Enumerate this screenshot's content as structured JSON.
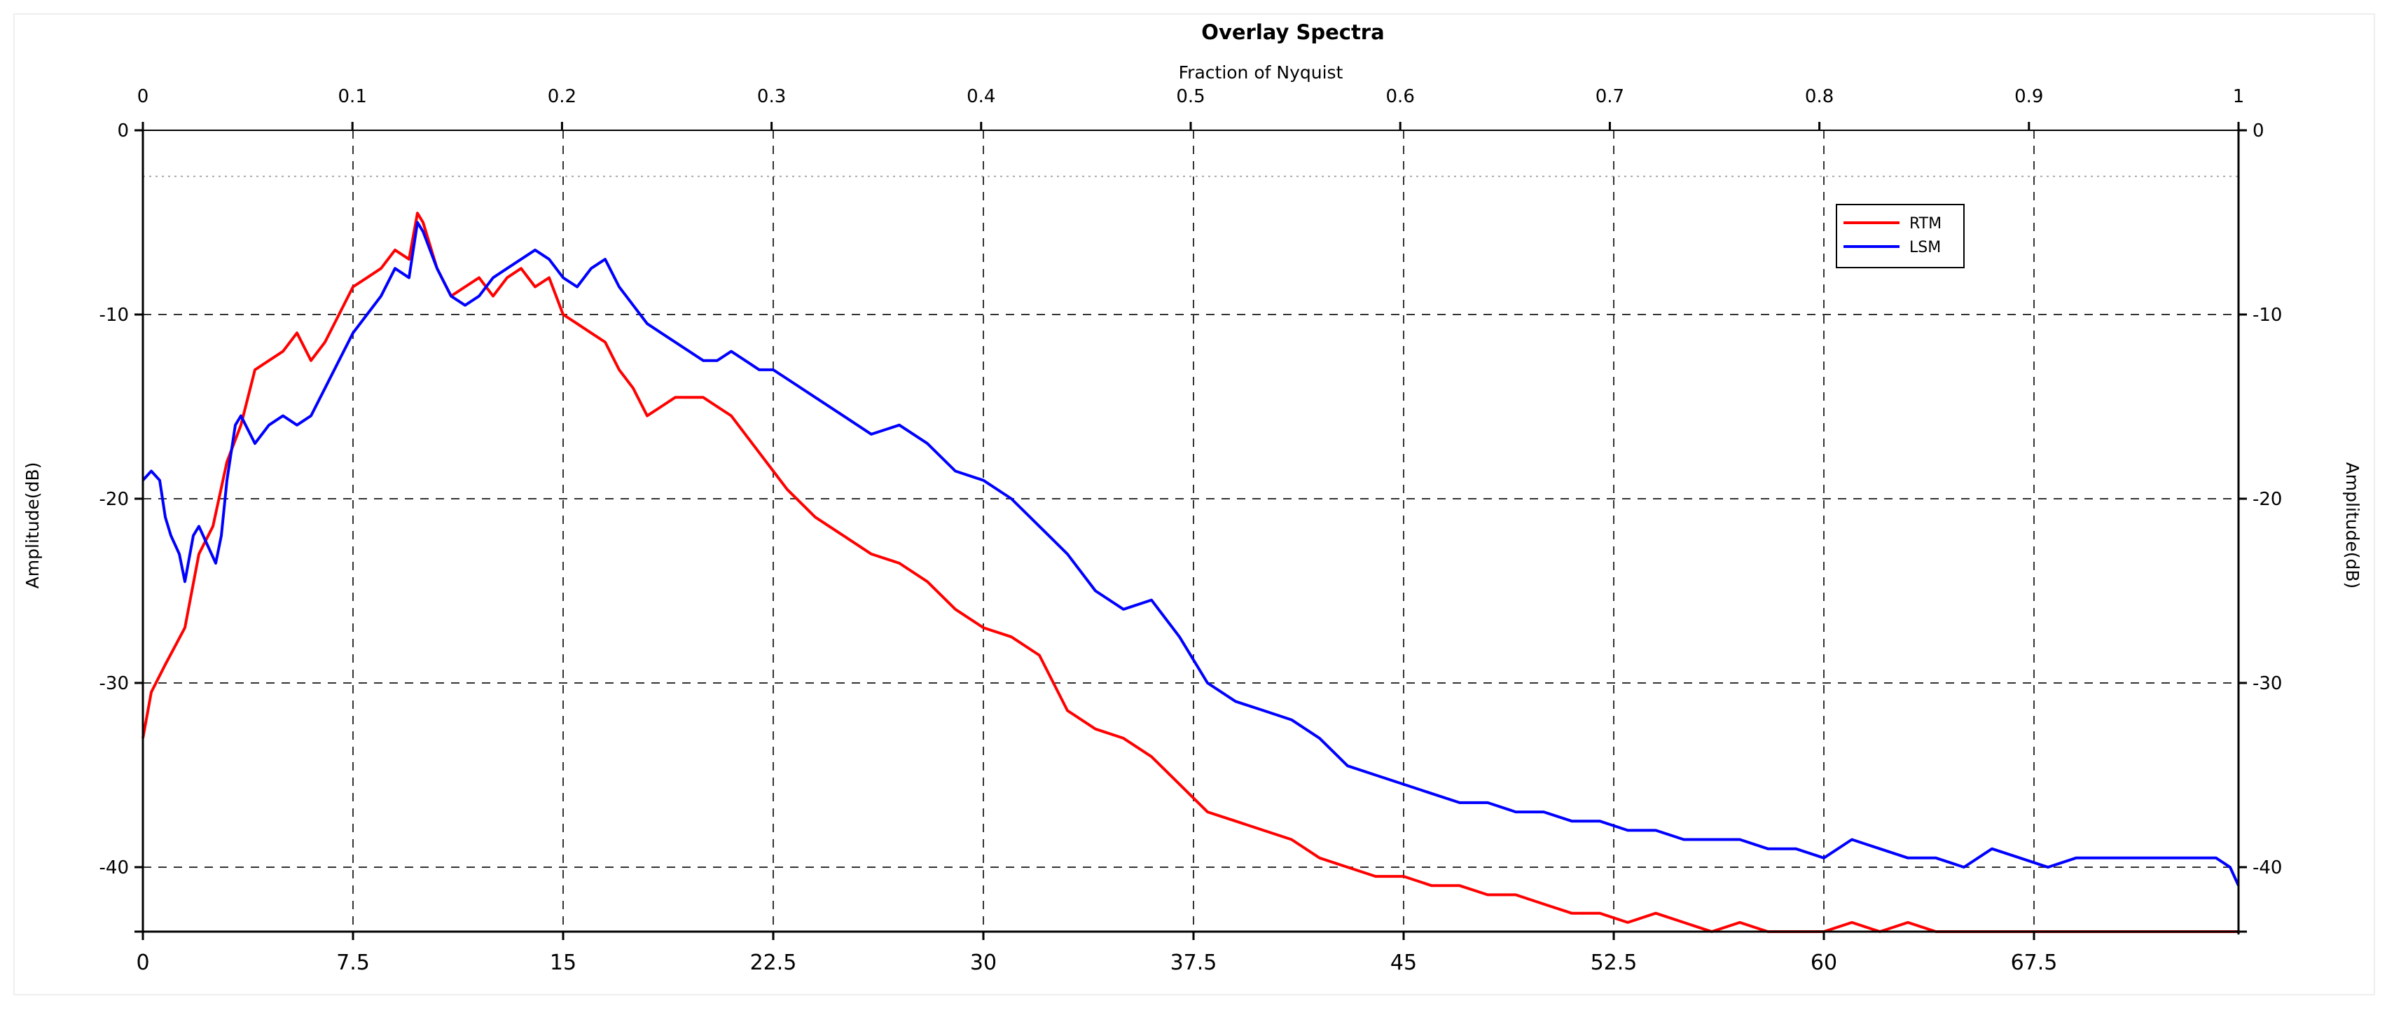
{
  "chart_data": {
    "type": "line",
    "title": "Overlay Spectra",
    "top_axis": {
      "label": "Fraction of Nyquist",
      "range": [
        0,
        1
      ],
      "ticks": [
        "0",
        "0.1",
        "0.2",
        "0.3",
        "0.4",
        "0.5",
        "0.6",
        "0.7",
        "0.8",
        "0.9",
        "1"
      ]
    },
    "xlim": [
      0,
      74.8
    ],
    "xticks": [
      "0",
      "7.5",
      "15",
      "22.5",
      "30",
      "37.5",
      "45",
      "52.5",
      "60",
      "67.5"
    ],
    "xtick_values": [
      0,
      7.5,
      15,
      22.5,
      30,
      37.5,
      45,
      52.5,
      60,
      67.5
    ],
    "ylabel": "Amplitude(dB)",
    "ylim": [
      -43.5,
      0
    ],
    "yticks": [
      "0",
      "-10",
      "-20",
      "-30",
      "-40"
    ],
    "ytick_values": [
      0,
      -10,
      -20,
      -30,
      -40
    ],
    "reference_line_db": -2.5,
    "grid": true,
    "legend_position": "top-right",
    "series": [
      {
        "name": "RTM",
        "color": "#ff0000",
        "points": [
          [
            0,
            -33
          ],
          [
            0.3,
            -30.5
          ],
          [
            0.8,
            -29
          ],
          [
            1.5,
            -27
          ],
          [
            2,
            -23
          ],
          [
            2.5,
            -21.5
          ],
          [
            3,
            -18
          ],
          [
            3.5,
            -16
          ],
          [
            4,
            -13
          ],
          [
            4.5,
            -12.5
          ],
          [
            5,
            -12
          ],
          [
            5.5,
            -11
          ],
          [
            6,
            -12.5
          ],
          [
            6.5,
            -11.5
          ],
          [
            7,
            -10
          ],
          [
            7.5,
            -8.5
          ],
          [
            8,
            -8
          ],
          [
            8.5,
            -7.5
          ],
          [
            9,
            -6.5
          ],
          [
            9.5,
            -7
          ],
          [
            9.8,
            -4.5
          ],
          [
            10,
            -5
          ],
          [
            10.5,
            -7.5
          ],
          [
            11,
            -9
          ],
          [
            11.5,
            -8.5
          ],
          [
            12,
            -8
          ],
          [
            12.5,
            -9
          ],
          [
            13,
            -8
          ],
          [
            13.5,
            -7.5
          ],
          [
            14,
            -8.5
          ],
          [
            14.5,
            -8
          ],
          [
            15,
            -10
          ],
          [
            15.5,
            -10.5
          ],
          [
            16,
            -11
          ],
          [
            16.5,
            -11.5
          ],
          [
            17,
            -13
          ],
          [
            17.5,
            -14
          ],
          [
            18,
            -15.5
          ],
          [
            18.5,
            -15
          ],
          [
            19,
            -14.5
          ],
          [
            19.5,
            -14.5
          ],
          [
            20,
            -14.5
          ],
          [
            20.5,
            -15
          ],
          [
            21,
            -15.5
          ],
          [
            21.5,
            -16.5
          ],
          [
            22,
            -17.5
          ],
          [
            22.5,
            -18.5
          ],
          [
            23,
            -19.5
          ],
          [
            24,
            -21
          ],
          [
            25,
            -22
          ],
          [
            26,
            -23
          ],
          [
            27,
            -23.5
          ],
          [
            28,
            -24.5
          ],
          [
            29,
            -26
          ],
          [
            30,
            -27
          ],
          [
            31,
            -27.5
          ],
          [
            32,
            -28.5
          ],
          [
            33,
            -31.5
          ],
          [
            34,
            -32.5
          ],
          [
            35,
            -33
          ],
          [
            36,
            -34
          ],
          [
            37,
            -35.5
          ],
          [
            38,
            -37
          ],
          [
            39,
            -37.5
          ],
          [
            40,
            -38
          ],
          [
            41,
            -38.5
          ],
          [
            42,
            -39.5
          ],
          [
            43,
            -40
          ],
          [
            44,
            -40.5
          ],
          [
            45,
            -40.5
          ],
          [
            46,
            -41
          ],
          [
            47,
            -41
          ],
          [
            48,
            -41.5
          ],
          [
            49,
            -41.5
          ],
          [
            50,
            -42
          ],
          [
            51,
            -42.5
          ],
          [
            52,
            -42.5
          ],
          [
            53,
            -43
          ],
          [
            54,
            -42.5
          ],
          [
            55,
            -43
          ],
          [
            56,
            -43.5
          ],
          [
            57,
            -43
          ],
          [
            58,
            -43.5
          ],
          [
            59,
            -43.5
          ],
          [
            60,
            -43.5
          ],
          [
            61,
            -43
          ],
          [
            62,
            -43.5
          ],
          [
            63,
            -43
          ],
          [
            64,
            -43.5
          ],
          [
            65,
            -43.5
          ],
          [
            66,
            -43.5
          ],
          [
            67,
            -43.5
          ],
          [
            68,
            -43.5
          ],
          [
            69,
            -43.5
          ],
          [
            70,
            -43.5
          ],
          [
            71,
            -43.5
          ],
          [
            72,
            -43.5
          ],
          [
            73,
            -43.5
          ],
          [
            74,
            -43.5
          ],
          [
            74.8,
            -43.5
          ]
        ]
      },
      {
        "name": "LSM",
        "color": "#0000ff",
        "points": [
          [
            0,
            -19
          ],
          [
            0.3,
            -18.5
          ],
          [
            0.6,
            -19
          ],
          [
            0.8,
            -21
          ],
          [
            1,
            -22
          ],
          [
            1.3,
            -23
          ],
          [
            1.5,
            -24.5
          ],
          [
            1.8,
            -22
          ],
          [
            2,
            -21.5
          ],
          [
            2.3,
            -22.5
          ],
          [
            2.6,
            -23.5
          ],
          [
            2.8,
            -22
          ],
          [
            3,
            -19
          ],
          [
            3.3,
            -16
          ],
          [
            3.5,
            -15.5
          ],
          [
            4,
            -17
          ],
          [
            4.5,
            -16
          ],
          [
            5,
            -15.5
          ],
          [
            5.5,
            -16
          ],
          [
            6,
            -15.5
          ],
          [
            6.5,
            -14
          ],
          [
            7,
            -12.5
          ],
          [
            7.5,
            -11
          ],
          [
            8,
            -10
          ],
          [
            8.5,
            -9
          ],
          [
            9,
            -7.5
          ],
          [
            9.5,
            -8
          ],
          [
            9.8,
            -5
          ],
          [
            10,
            -5.5
          ],
          [
            10.5,
            -7.5
          ],
          [
            11,
            -9
          ],
          [
            11.5,
            -9.5
          ],
          [
            12,
            -9
          ],
          [
            12.5,
            -8
          ],
          [
            13,
            -7.5
          ],
          [
            13.5,
            -7
          ],
          [
            14,
            -6.5
          ],
          [
            14.5,
            -7
          ],
          [
            15,
            -8
          ],
          [
            15.5,
            -8.5
          ],
          [
            16,
            -7.5
          ],
          [
            16.5,
            -7
          ],
          [
            17,
            -8.5
          ],
          [
            17.5,
            -9.5
          ],
          [
            18,
            -10.5
          ],
          [
            18.5,
            -11
          ],
          [
            19,
            -11.5
          ],
          [
            19.5,
            -12
          ],
          [
            20,
            -12.5
          ],
          [
            20.5,
            -12.5
          ],
          [
            21,
            -12
          ],
          [
            21.5,
            -12.5
          ],
          [
            22,
            -13
          ],
          [
            22.5,
            -13
          ],
          [
            23,
            -13.5
          ],
          [
            24,
            -14.5
          ],
          [
            25,
            -15.5
          ],
          [
            26,
            -16.5
          ],
          [
            27,
            -16
          ],
          [
            28,
            -17
          ],
          [
            29,
            -18.5
          ],
          [
            30,
            -19
          ],
          [
            31,
            -20
          ],
          [
            32,
            -21.5
          ],
          [
            33,
            -23
          ],
          [
            34,
            -25
          ],
          [
            35,
            -26
          ],
          [
            36,
            -25.5
          ],
          [
            37,
            -27.5
          ],
          [
            38,
            -30
          ],
          [
            39,
            -31
          ],
          [
            40,
            -31.5
          ],
          [
            41,
            -32
          ],
          [
            42,
            -33
          ],
          [
            43,
            -34.5
          ],
          [
            44,
            -35
          ],
          [
            45,
            -35.5
          ],
          [
            46,
            -36
          ],
          [
            47,
            -36.5
          ],
          [
            48,
            -36.5
          ],
          [
            49,
            -37
          ],
          [
            50,
            -37
          ],
          [
            51,
            -37.5
          ],
          [
            52,
            -37.5
          ],
          [
            53,
            -38
          ],
          [
            54,
            -38
          ],
          [
            55,
            -38.5
          ],
          [
            56,
            -38.5
          ],
          [
            57,
            -38.5
          ],
          [
            58,
            -39
          ],
          [
            59,
            -39
          ],
          [
            60,
            -39.5
          ],
          [
            61,
            -38.5
          ],
          [
            62,
            -39
          ],
          [
            63,
            -39.5
          ],
          [
            64,
            -39.5
          ],
          [
            65,
            -40
          ],
          [
            66,
            -39
          ],
          [
            67,
            -39.5
          ],
          [
            68,
            -40
          ],
          [
            69,
            -39.5
          ],
          [
            70,
            -39.5
          ],
          [
            71,
            -39.5
          ],
          [
            72,
            -39.5
          ],
          [
            73,
            -39.5
          ],
          [
            74,
            -39.5
          ],
          [
            74.5,
            -40
          ],
          [
            74.8,
            -41
          ]
        ]
      }
    ]
  }
}
